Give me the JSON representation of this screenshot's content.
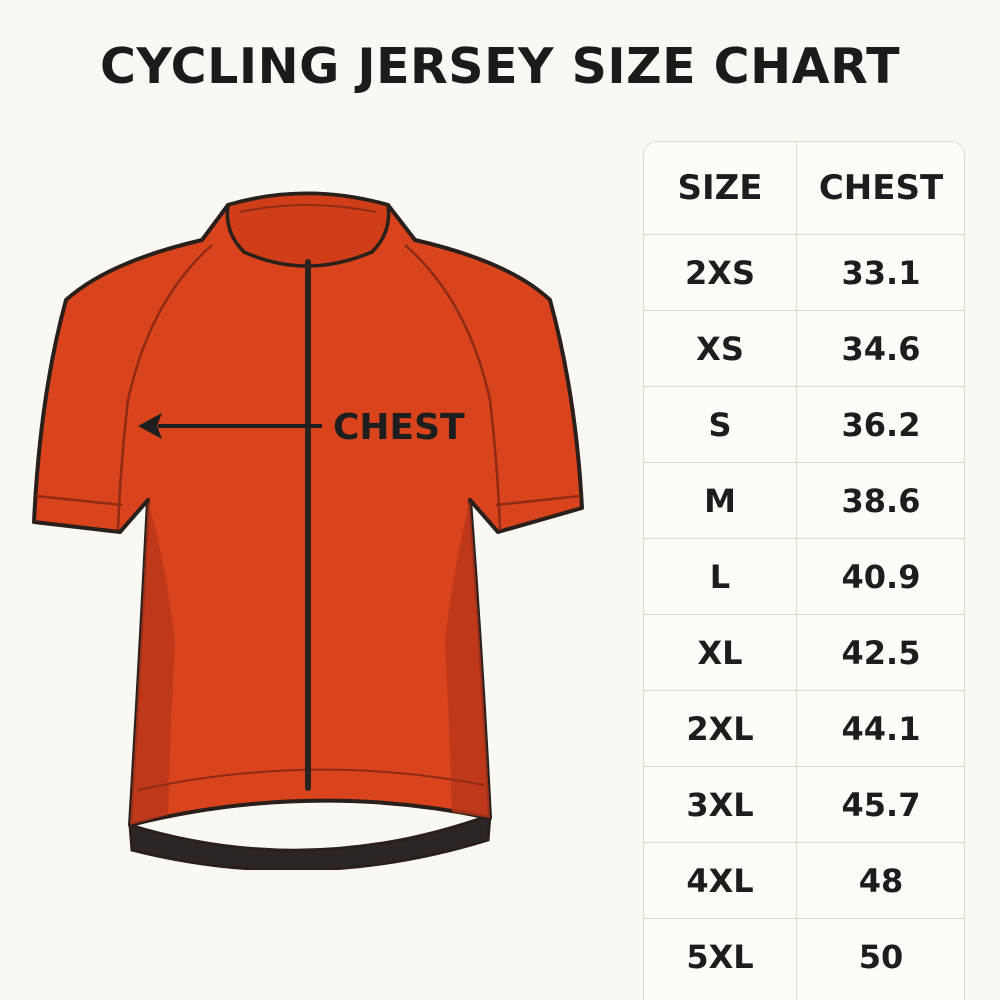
{
  "title": "CYCLING JERSEY SIZE CHART",
  "diagram": {
    "measurement_label": "CHEST",
    "colors": {
      "jersey": "#d9441c",
      "jersey_shadow": "#b8361a",
      "outline": "#2a1f1a",
      "zipper": "#2a2320"
    }
  },
  "table": {
    "headers": {
      "size": "SIZE",
      "chest": "CHEST"
    },
    "rows": [
      {
        "size": "2XS",
        "chest": "33.1"
      },
      {
        "size": "XS",
        "chest": "34.6"
      },
      {
        "size": "S",
        "chest": "36.2"
      },
      {
        "size": "M",
        "chest": "38.6"
      },
      {
        "size": "L",
        "chest": "40.9"
      },
      {
        "size": "XL",
        "chest": "42.5"
      },
      {
        "size": "2XL",
        "chest": "44.1"
      },
      {
        "size": "3XL",
        "chest": "45.7"
      },
      {
        "size": "4XL",
        "chest": "48"
      },
      {
        "size": "5XL",
        "chest": "50"
      }
    ]
  }
}
